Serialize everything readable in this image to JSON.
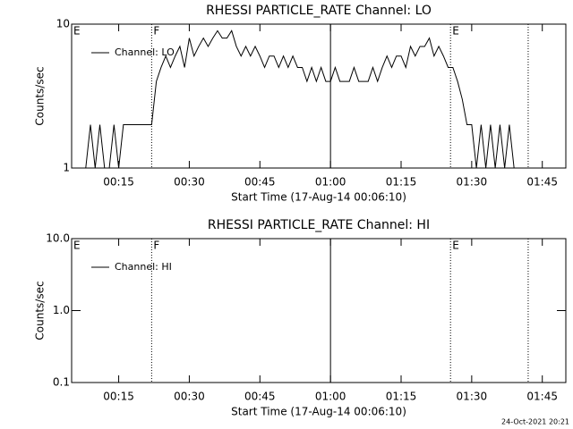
{
  "chart_data": [
    {
      "type": "line",
      "title": "RHESSI PARTICLE_RATE Channel: LO",
      "x_label": "Start Time (17-Aug-14 00:06:10)",
      "y_label": "Counts/sec",
      "xlim": [
        5,
        110
      ],
      "xticks": [
        {
          "value": 15,
          "label": "00:15"
        },
        {
          "value": 30,
          "label": "00:30"
        },
        {
          "value": 45,
          "label": "00:45"
        },
        {
          "value": 60,
          "label": "01:00"
        },
        {
          "value": 75,
          "label": "01:15"
        },
        {
          "value": 90,
          "label": "01:30"
        },
        {
          "value": 105,
          "label": "01:45"
        }
      ],
      "ylim": [
        1,
        10
      ],
      "yticks": [
        1,
        10
      ],
      "log_y": true,
      "series": [
        {
          "name": "Channel: LO",
          "color": "#000000",
          "x": [
            8,
            9,
            10,
            11,
            12,
            13,
            14,
            15,
            16,
            17,
            18,
            19,
            20,
            21,
            22,
            23,
            24,
            25,
            26,
            27,
            28,
            29,
            30,
            31,
            32,
            33,
            34,
            35,
            36,
            37,
            38,
            39,
            40,
            41,
            42,
            43,
            44,
            45,
            46,
            47,
            48,
            49,
            50,
            51,
            52,
            53,
            54,
            55,
            56,
            57,
            58,
            59,
            60,
            61,
            62,
            63,
            64,
            65,
            66,
            67,
            68,
            69,
            70,
            71,
            72,
            73,
            74,
            75,
            76,
            77,
            78,
            79,
            80,
            81,
            82,
            83,
            84,
            85,
            86,
            87,
            88,
            89,
            90,
            91,
            92,
            93,
            94,
            95,
            96,
            97,
            98,
            99
          ],
          "values": [
            1,
            2,
            1,
            2,
            1,
            1,
            2,
            1,
            2,
            2,
            2,
            2,
            2,
            2,
            2,
            4,
            5,
            6,
            5,
            6,
            7,
            5,
            8,
            6,
            7,
            8,
            7,
            8,
            9,
            8,
            8,
            9,
            7,
            6,
            7,
            6,
            7,
            6,
            5,
            6,
            6,
            5,
            6,
            5,
            6,
            5,
            5,
            4,
            5,
            4,
            5,
            4,
            4,
            5,
            4,
            4,
            4,
            5,
            4,
            4,
            4,
            5,
            4,
            5,
            6,
            5,
            6,
            6,
            5,
            7,
            6,
            7,
            7,
            8,
            6,
            7,
            6,
            5,
            5,
            4,
            3,
            2,
            2,
            1,
            2,
            1,
            2,
            1,
            2,
            1,
            2,
            1
          ]
        }
      ],
      "markers": [
        {
          "x": 5,
          "label": "E"
        },
        {
          "x": 22,
          "label": "F",
          "style": "dotted"
        },
        {
          "x": 60,
          "style": "solid"
        },
        {
          "x": 85.5,
          "label": "E",
          "style": "dotted"
        },
        {
          "x": 102,
          "style": "dotted"
        }
      ]
    },
    {
      "type": "line",
      "title": "RHESSI PARTICLE_RATE Channel: HI",
      "x_label": "Start Time (17-Aug-14 00:06:10)",
      "y_label": "Counts/sec",
      "xlim": [
        5,
        110
      ],
      "xticks": [
        {
          "value": 15,
          "label": "00:15"
        },
        {
          "value": 30,
          "label": "00:30"
        },
        {
          "value": 45,
          "label": "00:45"
        },
        {
          "value": 60,
          "label": "01:00"
        },
        {
          "value": 75,
          "label": "01:15"
        },
        {
          "value": 90,
          "label": "01:30"
        },
        {
          "value": 105,
          "label": "01:45"
        }
      ],
      "ylim": [
        0.1,
        10
      ],
      "yticks": [
        0.1,
        {
          "value": 1,
          "label": "1.0"
        },
        {
          "value": 10,
          "label": "10.0"
        }
      ],
      "log_y": true,
      "series": [
        {
          "name": "Channel: HI",
          "color": "#000000",
          "x": [],
          "values": []
        }
      ],
      "markers": [
        {
          "x": 5,
          "label": "E"
        },
        {
          "x": 22,
          "label": "F",
          "style": "dotted"
        },
        {
          "x": 60,
          "style": "solid"
        },
        {
          "x": 85.5,
          "label": "E",
          "style": "dotted"
        },
        {
          "x": 102,
          "style": "dotted"
        }
      ]
    }
  ],
  "footer": "24-Oct-2021 20:21"
}
